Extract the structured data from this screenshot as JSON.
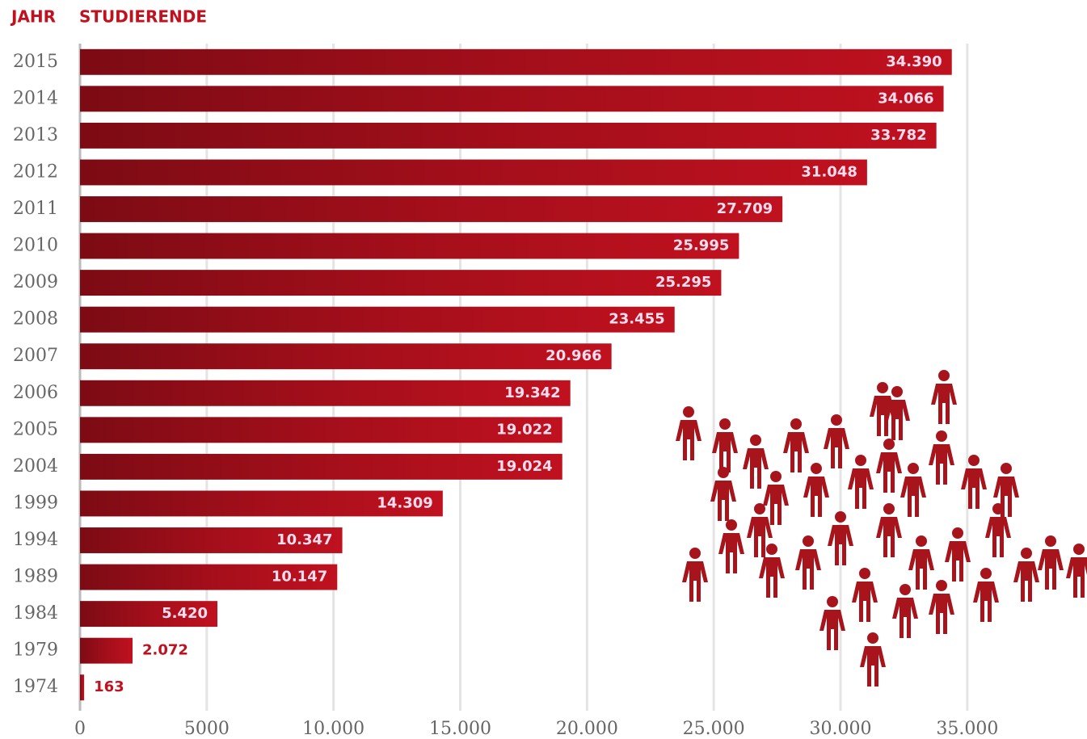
{
  "chart_data": {
    "type": "hbar",
    "ylabel": "JAHR",
    "xlabel": "STUDIERENDE",
    "categories": [
      "2015",
      "2014",
      "2013",
      "2012",
      "2011",
      "2010",
      "2009",
      "2008",
      "2007",
      "2006",
      "2005",
      "2004",
      "1999",
      "1994",
      "1989",
      "1984",
      "1979",
      "1974"
    ],
    "values": [
      34390,
      34066,
      33782,
      31048,
      27709,
      25995,
      25295,
      23455,
      20966,
      19342,
      19022,
      19024,
      14309,
      10347,
      10147,
      5420,
      2072,
      163
    ],
    "value_labels": [
      "34.390",
      "34.066",
      "33.782",
      "31.048",
      "27.709",
      "25.995",
      "25.295",
      "23.455",
      "20.966",
      "19.342",
      "19.022",
      "19.024",
      "14.309",
      "10.347",
      "10.147",
      "5.420",
      "2.072",
      "163"
    ],
    "color": "#c0111f",
    "xlim": [
      0,
      39500
    ],
    "xticks": [
      0,
      5000,
      {
        "value": 10000,
        "label": "10.000"
      },
      {
        "value": 15000,
        "label": "15.000"
      },
      {
        "value": 20000,
        "label": "20.000"
      },
      {
        "value": 25000,
        "label": "25.000"
      },
      {
        "value": 30000,
        "label": "30.000"
      },
      {
        "value": 35000,
        "label": "35.000"
      }
    ],
    "grid": true
  }
}
